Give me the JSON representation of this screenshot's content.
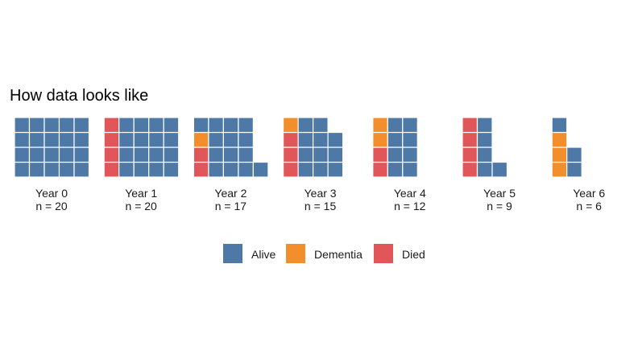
{
  "chart_data": {
    "type": "waffle",
    "title": "How data looks like",
    "colors": {
      "Alive": "#4e79a7",
      "Dementia": "#f28e2b",
      "Died": "#e15759"
    },
    "legend": {
      "placement": "bottom",
      "entries": [
        "Alive",
        "Dementia",
        "Died"
      ]
    },
    "panels": [
      {
        "label": "Year 0",
        "n_label": "n = 20",
        "counts": {
          "Alive": 20,
          "Dementia": 0,
          "Died": 0
        }
      },
      {
        "label": "Year 1",
        "n_label": "n = 20",
        "counts": {
          "Alive": 16,
          "Dementia": 0,
          "Died": 4
        }
      },
      {
        "label": "Year 2",
        "n_label": "n = 17",
        "counts": {
          "Alive": 14,
          "Dementia": 1,
          "Died": 2
        }
      },
      {
        "label": "Year 3",
        "n_label": "n = 15",
        "counts": {
          "Alive": 11,
          "Dementia": 1,
          "Died": 3
        }
      },
      {
        "label": "Year 4",
        "n_label": "n = 12",
        "counts": {
          "Alive": 8,
          "Dementia": 2,
          "Died": 2
        }
      },
      {
        "label": "Year 5",
        "n_label": "n = 9",
        "counts": {
          "Alive": 5,
          "Dementia": 0,
          "Died": 4
        }
      },
      {
        "label": "Year 6",
        "n_label": "n = 6",
        "counts": {
          "Alive": 3,
          "Dementia": 3,
          "Died": 0
        }
      }
    ]
  }
}
